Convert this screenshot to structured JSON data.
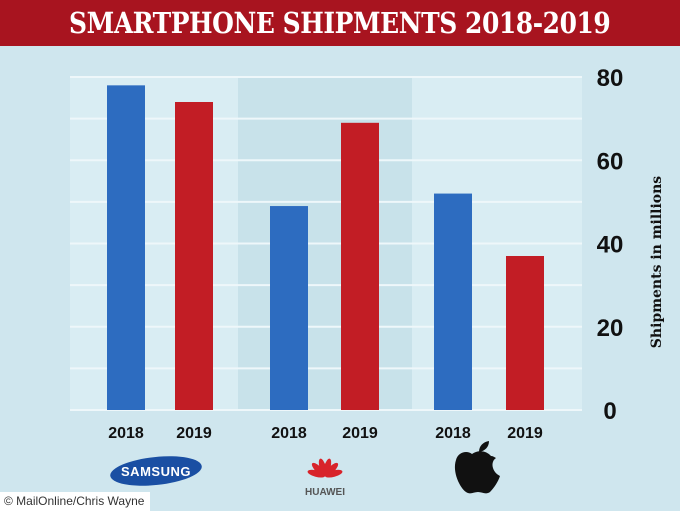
{
  "header": {
    "title": "SMARTPHONE SHIPMENTS 2018-2019"
  },
  "credit": "© MailOnline/Chris Wayne",
  "brands": [
    {
      "logo": "samsung-logo",
      "text": "SAMSUNG"
    },
    {
      "logo": "huawei-logo",
      "text": "HUAWEI"
    },
    {
      "logo": "apple-logo",
      "text": ""
    }
  ],
  "colors": {
    "banner": "#a8141f",
    "background": "#cfe6ee",
    "series_2018": "#2d6cc0",
    "series_2019": "#c21d25"
  },
  "chart_data": {
    "type": "bar",
    "title": "SMARTPHONE SHIPMENTS 2018-2019",
    "ylabel": "Shipments in millions",
    "ylim": [
      0,
      80
    ],
    "yticks": [
      0,
      20,
      40,
      60,
      80
    ],
    "y_axis_side": "right",
    "grid": true,
    "groups": [
      {
        "brand": "Samsung",
        "bars": [
          {
            "label": "2018",
            "value": 78
          },
          {
            "label": "2019",
            "value": 74
          }
        ]
      },
      {
        "brand": "Huawei",
        "bars": [
          {
            "label": "2018",
            "value": 49
          },
          {
            "label": "2019",
            "value": 69
          }
        ]
      },
      {
        "brand": "Apple",
        "bars": [
          {
            "label": "2018",
            "value": 52
          },
          {
            "label": "2019",
            "value": 37
          }
        ]
      }
    ]
  }
}
